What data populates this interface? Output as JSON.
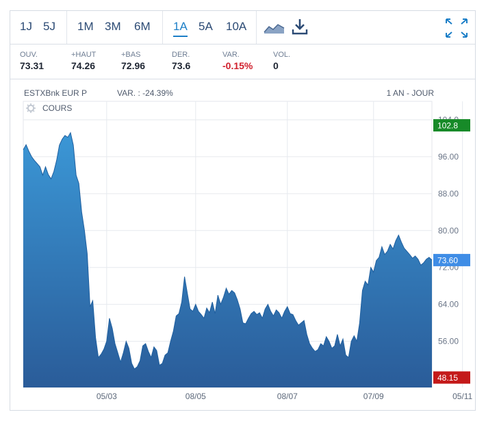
{
  "toolbar": {
    "periods": [
      "1J",
      "5J",
      "1M",
      "3M",
      "6M",
      "1A",
      "5A",
      "10A"
    ],
    "active_period": "1A",
    "icons": [
      "area-chart-icon",
      "download-icon",
      "fullscreen-icon"
    ]
  },
  "stats": [
    {
      "label": "OUV.",
      "value": "73.31"
    },
    {
      "label": "+HAUT",
      "value": "74.26"
    },
    {
      "label": "+BAS",
      "value": "72.96"
    },
    {
      "label": "DER.",
      "value": "73.6"
    },
    {
      "label": "VAR.",
      "value": "-0.15%"
    },
    {
      "label": "VOL.",
      "value": "0"
    }
  ],
  "chart_header": {
    "instrument": "ESTXBnk EUR P",
    "variation": "VAR. : -24.39%",
    "period": "1 AN - JOUR",
    "series_label": "COURS"
  },
  "colors": {
    "accent": "#1b7ec7",
    "area_top": "#3b97d6",
    "area_bottom": "#2a5c99",
    "high_badge": "#178a28",
    "last_badge": "#3f8de6",
    "low_badge": "#c41a1a",
    "negative": "#d0202d"
  },
  "chart_data": {
    "type": "area",
    "title": "ESTXBnk EUR P",
    "xlabel": "",
    "ylabel": "",
    "ylim": [
      46,
      108
    ],
    "yticks": [
      "104.0",
      "96.00",
      "88.00",
      "80.00",
      "72.00",
      "64.00",
      "56.00"
    ],
    "ytick_values": [
      104,
      96,
      88,
      80,
      72,
      64,
      56
    ],
    "xticks": [
      "05/03",
      "08/05",
      "08/07",
      "07/09",
      "05/11"
    ],
    "xtick_index": [
      30,
      62,
      95,
      126,
      158
    ],
    "badges": [
      {
        "label": "102.8",
        "value": 102.8,
        "kind": "high"
      },
      {
        "label": "73.60",
        "value": 73.6,
        "kind": "last"
      },
      {
        "label": "48.15",
        "value": 48.15,
        "kind": "low"
      }
    ],
    "series": [
      {
        "name": "COURS",
        "values": [
          97.5,
          98.6,
          97.2,
          96.0,
          95.2,
          94.5,
          93.8,
          92.0,
          93.8,
          92.1,
          91.2,
          92.8,
          95.2,
          98.5,
          99.8,
          100.6,
          100.2,
          101.2,
          98.5,
          92.0,
          90.2,
          84.0,
          80.1,
          75.0,
          63.5,
          64.8,
          56.8,
          52.5,
          53.2,
          54.3,
          56.0,
          61.0,
          58.8,
          55.5,
          53.5,
          51.5,
          53.5,
          56.0,
          54.5,
          51.2,
          50.0,
          50.5,
          51.8,
          55.0,
          55.5,
          53.8,
          52.5,
          54.8,
          54.0,
          50.8,
          51.2,
          53.0,
          53.5,
          56.0,
          58.2,
          61.5,
          62.0,
          64.5,
          70.0,
          66.5,
          63.0,
          62.5,
          64.0,
          62.5,
          61.8,
          61.0,
          63.2,
          62.2,
          64.5,
          62.0,
          66.0,
          64.0,
          65.5,
          67.5,
          66.2,
          67.0,
          66.5,
          65.0,
          63.0,
          60.0,
          59.8,
          61.0,
          62.0,
          62.5,
          61.8,
          62.2,
          61.0,
          63.0,
          64.0,
          62.5,
          61.5,
          62.8,
          62.2,
          61.0,
          62.5,
          63.5,
          62.0,
          61.8,
          60.5,
          59.5,
          60.0,
          60.5,
          57.5,
          55.5,
          54.5,
          53.8,
          54.2,
          55.5,
          55.0,
          57.0,
          56.0,
          54.5,
          55.0,
          57.5,
          55.0,
          56.5,
          53.0,
          52.5,
          56.0,
          57.2,
          56.0,
          60.0,
          67.0,
          69.0,
          68.2,
          72.0,
          71.0,
          73.5,
          74.2,
          76.5,
          74.8,
          75.5,
          77.0,
          76.0,
          77.8,
          79.0,
          77.5,
          76.2,
          75.5,
          74.8,
          74.0,
          74.5,
          73.8,
          72.5,
          73.0,
          73.8,
          74.2,
          73.6
        ]
      }
    ]
  }
}
